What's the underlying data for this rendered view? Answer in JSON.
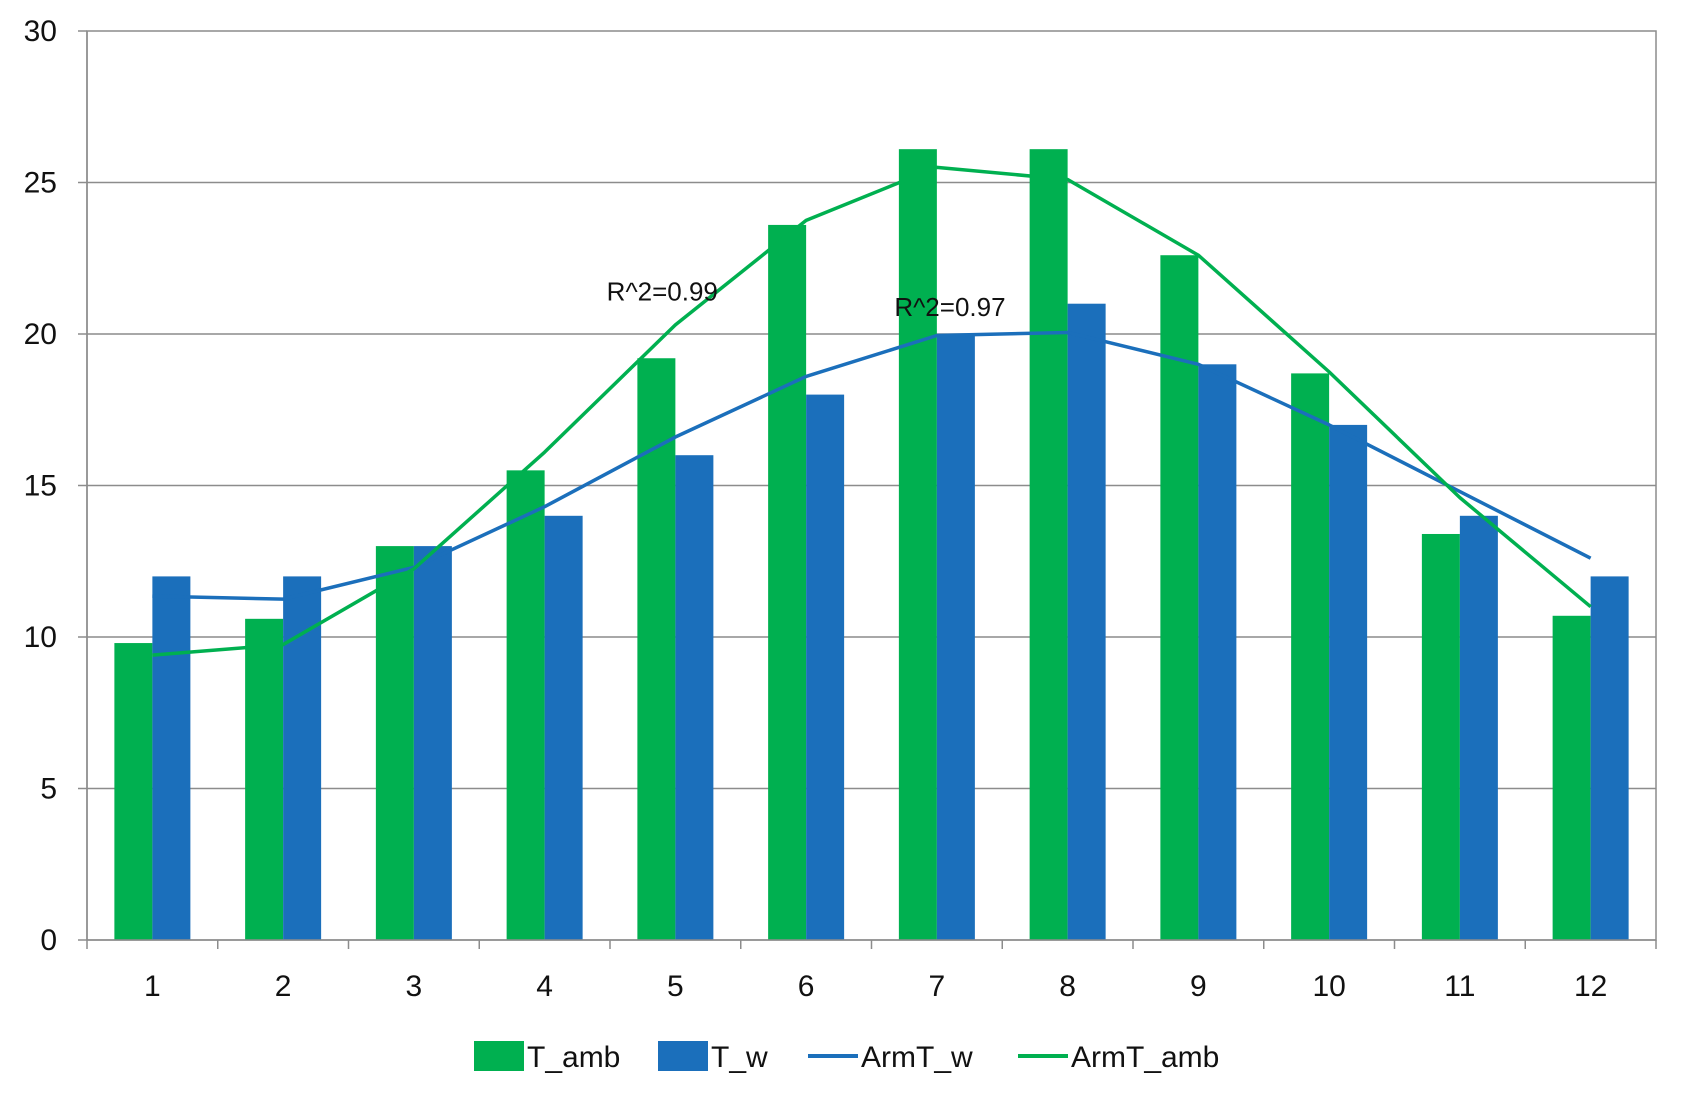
{
  "chart_data": {
    "type": "bar",
    "categories": [
      "1",
      "2",
      "3",
      "4",
      "5",
      "6",
      "7",
      "8",
      "9",
      "10",
      "11",
      "12"
    ],
    "ylim": [
      0,
      30
    ],
    "yticks": [
      0,
      5,
      10,
      15,
      20,
      25,
      30
    ],
    "grid": true,
    "legend_position": "bottom",
    "bar_series": [
      {
        "name": "T_amb",
        "color": "#00B050",
        "values": [
          9.8,
          10.6,
          13.0,
          15.5,
          19.2,
          23.6,
          26.1,
          26.1,
          22.6,
          18.7,
          13.4,
          10.7
        ]
      },
      {
        "name": "T_w",
        "color": "#1B6FBB",
        "values": [
          12,
          12,
          13,
          14,
          16,
          18,
          20,
          21,
          19,
          17,
          14,
          12
        ]
      }
    ],
    "line_series": [
      {
        "name": "ArmT_w",
        "color": "#1B6FBB",
        "values": [
          11.35,
          11.25,
          12.3,
          14.3,
          16.6,
          18.6,
          19.95,
          20.05,
          19.0,
          17.0,
          14.8,
          12.6
        ]
      },
      {
        "name": "ArmT_amb",
        "color": "#00B050",
        "values": [
          9.4,
          9.75,
          12.25,
          16.1,
          20.3,
          23.75,
          25.5,
          25.1,
          22.6,
          18.75,
          14.6,
          11.0
        ]
      }
    ],
    "annotations": [
      {
        "text": "R^2=0.99",
        "x": 4.9,
        "y": 21.1
      },
      {
        "text": "R^2=0.97",
        "x": 7.1,
        "y": 20.6
      }
    ]
  }
}
